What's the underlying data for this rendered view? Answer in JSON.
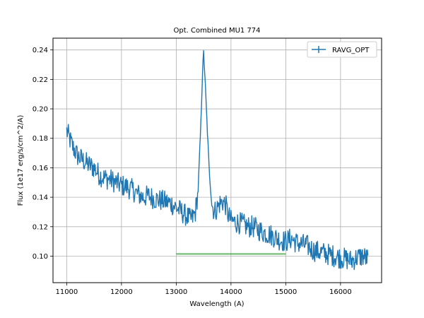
{
  "chart_data": {
    "type": "line",
    "title": "Opt. Combined MU1 774",
    "xlabel": "Wavelength (A)",
    "ylabel": "Flux (1e17 erg/s/cm^2/A)",
    "xlim": [
      10750,
      16750
    ],
    "ylim": [
      0.082,
      0.248
    ],
    "xticks": [
      11000,
      12000,
      13000,
      14000,
      15000,
      16000
    ],
    "yticks": [
      0.1,
      0.12,
      0.14,
      0.16,
      0.18,
      0.2,
      0.22,
      0.24
    ],
    "ytick_labels": [
      "0.10",
      "0.12",
      "0.14",
      "0.16",
      "0.18",
      "0.20",
      "0.22",
      "0.24"
    ],
    "grid": true,
    "legend": {
      "position": "upper right",
      "entries": [
        "RAVG_OPT"
      ]
    },
    "colors": {
      "series": "#1f77b4",
      "band": "#2ca02c"
    },
    "series": [
      {
        "name": "RAVG_OPT",
        "x": [
          11000,
          11100,
          11200,
          11300,
          11400,
          11500,
          11600,
          11700,
          11800,
          11900,
          12000,
          12100,
          12200,
          12300,
          12400,
          12500,
          12600,
          12700,
          12800,
          12900,
          13000,
          13100,
          13200,
          13250,
          13300,
          13350,
          13400,
          13450,
          13480,
          13500,
          13520,
          13550,
          13600,
          13650,
          13700,
          13750,
          13800,
          13850,
          13900,
          13950,
          14000,
          14100,
          14200,
          14300,
          14400,
          14500,
          14600,
          14700,
          14800,
          14900,
          15000,
          15100,
          15200,
          15300,
          15400,
          15500,
          15600,
          15700,
          15800,
          15900,
          16000,
          16100,
          16200,
          16300,
          16400,
          16500
        ],
        "y": [
          0.185,
          0.175,
          0.168,
          0.165,
          0.162,
          0.16,
          0.155,
          0.153,
          0.152,
          0.15,
          0.148,
          0.147,
          0.145,
          0.142,
          0.14,
          0.141,
          0.139,
          0.138,
          0.137,
          0.136,
          0.133,
          0.13,
          0.127,
          0.125,
          0.126,
          0.13,
          0.145,
          0.19,
          0.225,
          0.238,
          0.225,
          0.2,
          0.16,
          0.135,
          0.13,
          0.133,
          0.136,
          0.137,
          0.135,
          0.128,
          0.124,
          0.123,
          0.122,
          0.12,
          0.12,
          0.118,
          0.116,
          0.115,
          0.113,
          0.111,
          0.11,
          0.112,
          0.109,
          0.108,
          0.107,
          0.104,
          0.103,
          0.102,
          0.101,
          0.1,
          0.099,
          0.098,
          0.097,
          0.099,
          0.1,
          0.098
        ]
      }
    ],
    "band": {
      "x": [
        13000,
        15000
      ],
      "y": 0.1015
    }
  }
}
